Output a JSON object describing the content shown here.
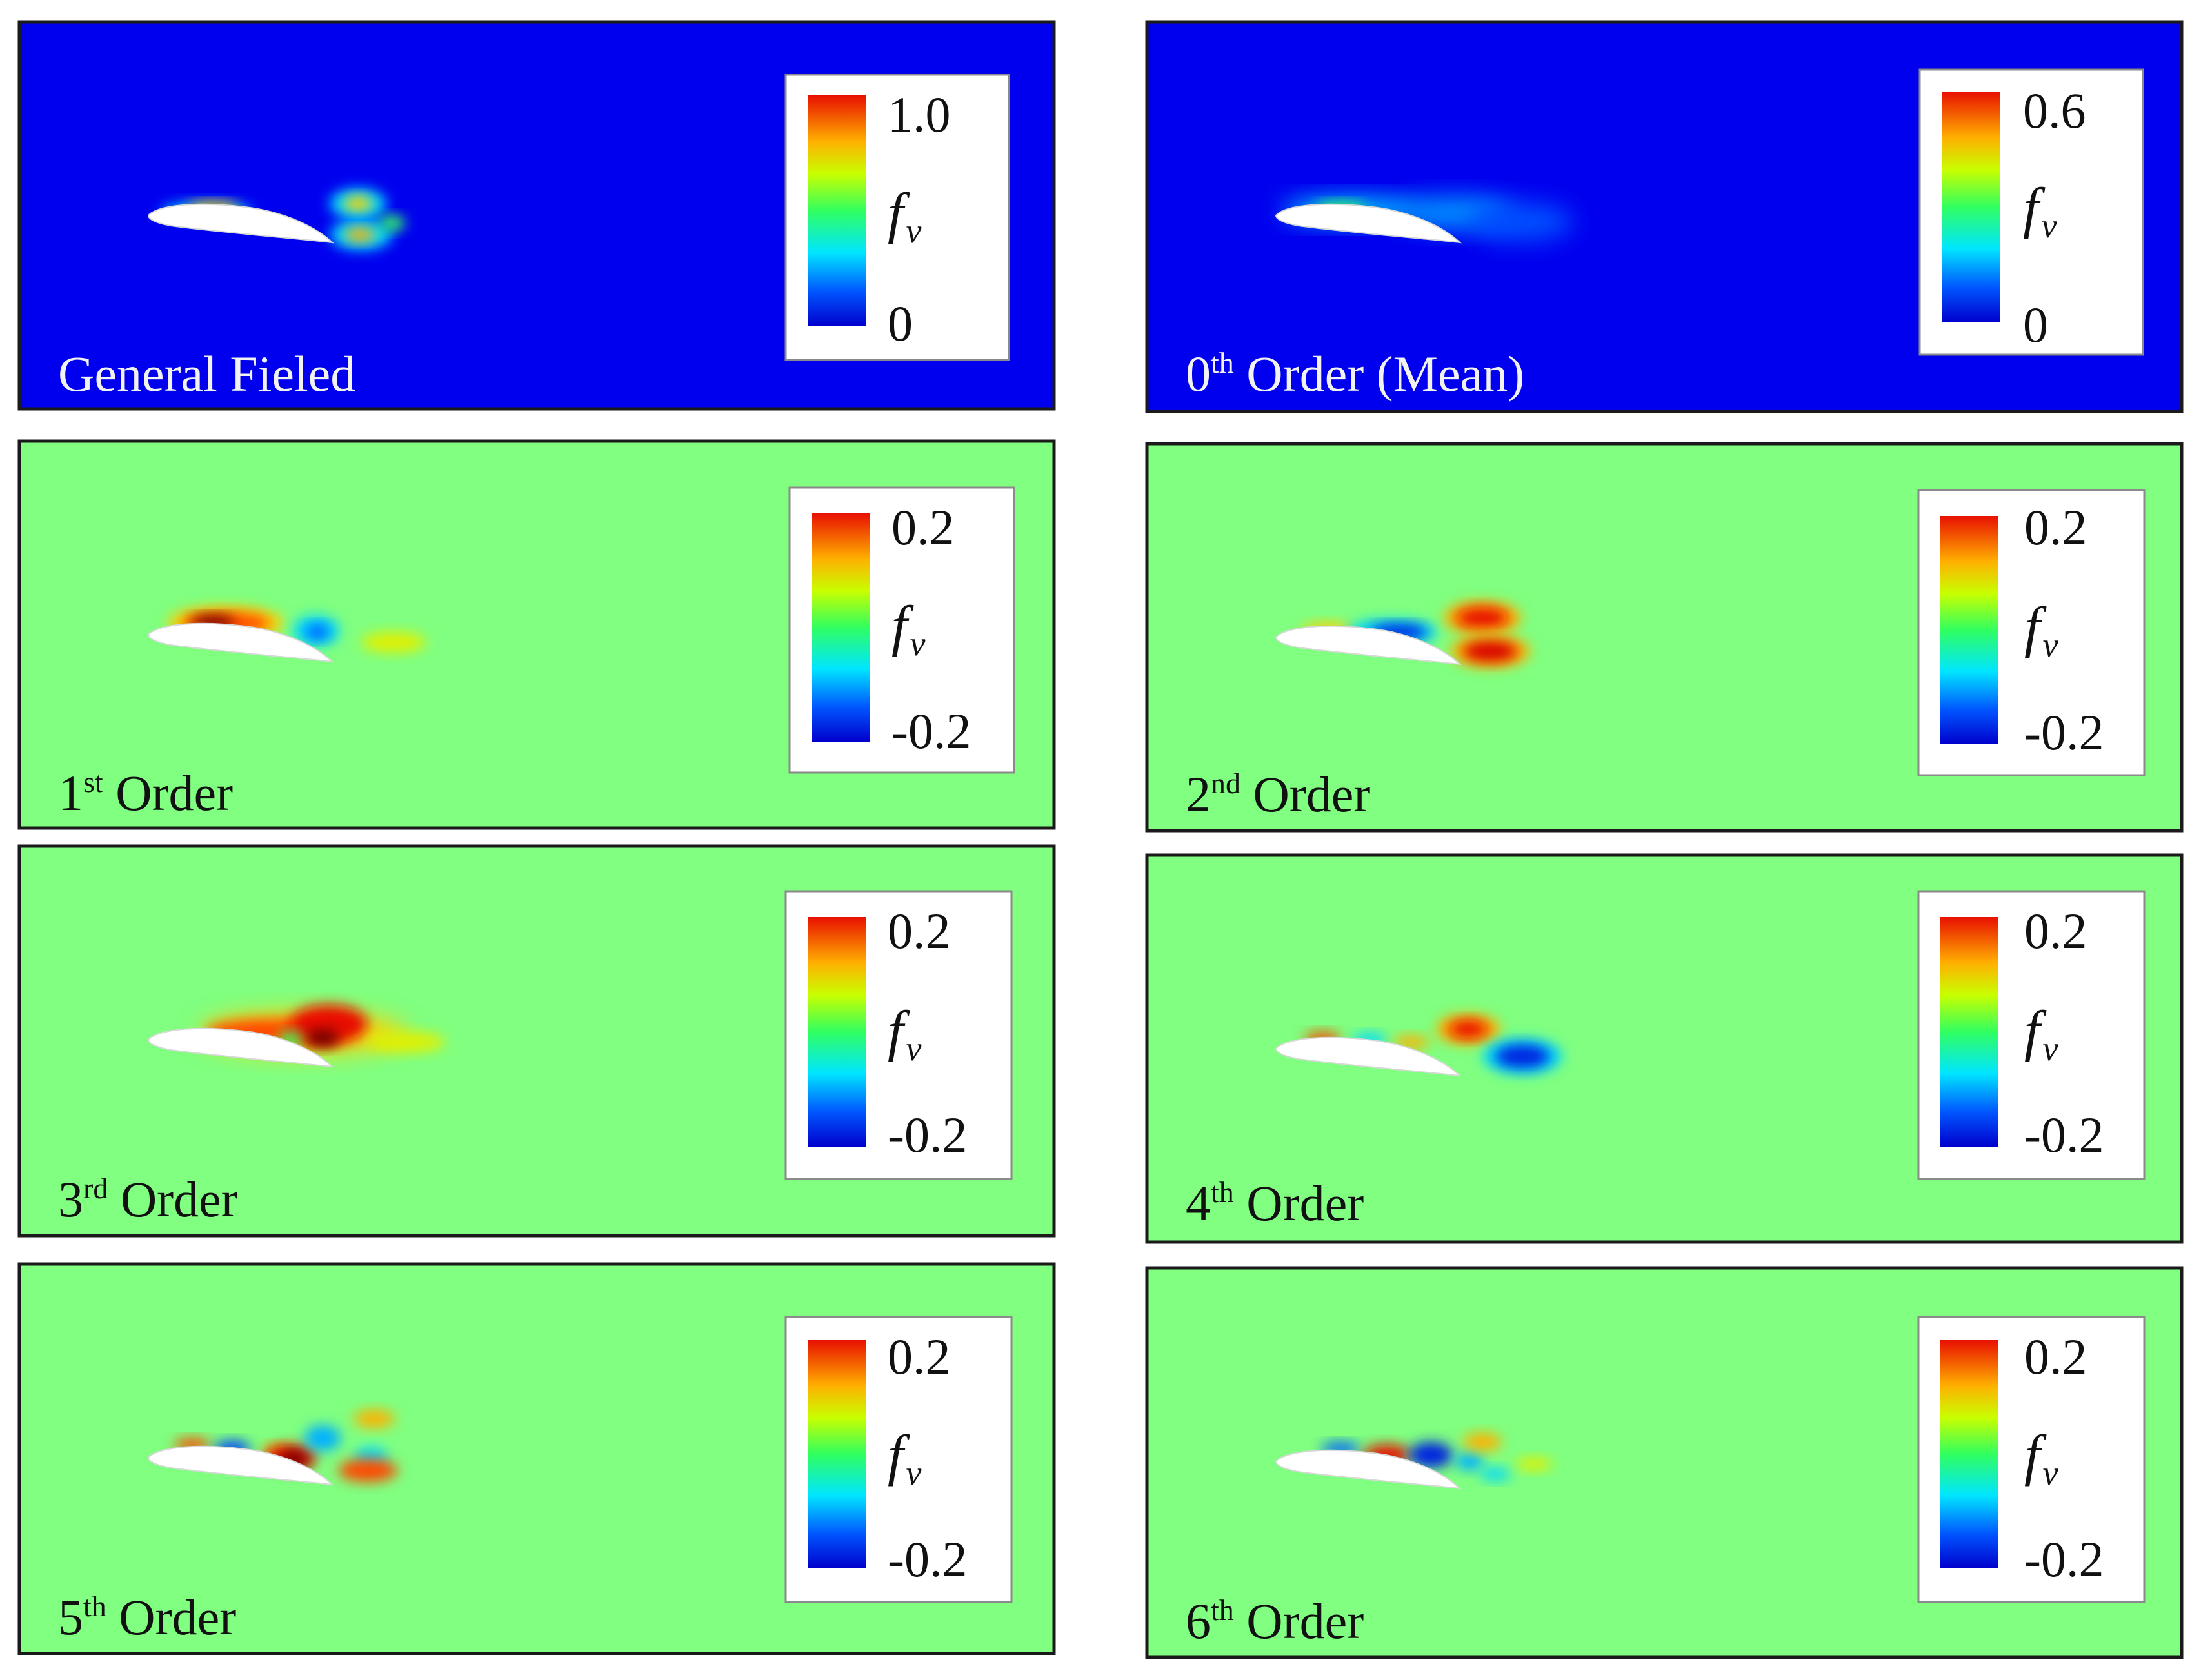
{
  "colors": {
    "magnitude_background": "#0000ee",
    "mode_background": "#80ff80",
    "title_on_dark": "#f2f2f2",
    "title_on_light": "#111111",
    "colormap": [
      "#0000cc",
      "#0066ff",
      "#00e6ff",
      "#40ff80",
      "#c8ff00",
      "#ffd000",
      "#ff5a00",
      "#dd0000",
      "#7a0000"
    ]
  },
  "variable": {
    "symbol": "f",
    "subscript": "v"
  },
  "panels": [
    {
      "id": "general",
      "title": "General Fieled",
      "title_sup": "",
      "title_rest": "",
      "legend": {
        "max": "1.0",
        "min": "0"
      },
      "range": [
        0,
        1.0
      ],
      "background": "magnitude"
    },
    {
      "id": "mode0",
      "title": "0",
      "title_sup": "th",
      "title_rest": " Order (Mean)",
      "legend": {
        "max": "0.6",
        "min": "0"
      },
      "range": [
        0,
        0.6
      ],
      "background": "magnitude"
    },
    {
      "id": "mode1",
      "title": "1",
      "title_sup": "st",
      "title_rest": " Order",
      "legend": {
        "max": "0.2",
        "min": "-0.2"
      },
      "range": [
        -0.2,
        0.2
      ],
      "background": "mode"
    },
    {
      "id": "mode2",
      "title": "2",
      "title_sup": "nd",
      "title_rest": " Order",
      "legend": {
        "max": "0.2",
        "min": "-0.2"
      },
      "range": [
        -0.2,
        0.2
      ],
      "background": "mode"
    },
    {
      "id": "mode3",
      "title": "3",
      "title_sup": "rd",
      "title_rest": " Order",
      "legend": {
        "max": "0.2",
        "min": "-0.2"
      },
      "range": [
        -0.2,
        0.2
      ],
      "background": "mode"
    },
    {
      "id": "mode4",
      "title": "4",
      "title_sup": "th",
      "title_rest": " Order",
      "legend": {
        "max": "0.2",
        "min": "-0.2"
      },
      "range": [
        -0.2,
        0.2
      ],
      "background": "mode"
    },
    {
      "id": "mode5",
      "title": "5",
      "title_sup": "th",
      "title_rest": " Order",
      "legend": {
        "max": "0.2",
        "min": "-0.2"
      },
      "range": [
        -0.2,
        0.2
      ],
      "background": "mode"
    },
    {
      "id": "mode6",
      "title": "6",
      "title_sup": "th",
      "title_rest": " Order",
      "legend": {
        "max": "0.2",
        "min": "-0.2"
      },
      "range": [
        -0.2,
        0.2
      ],
      "background": "mode"
    }
  ]
}
